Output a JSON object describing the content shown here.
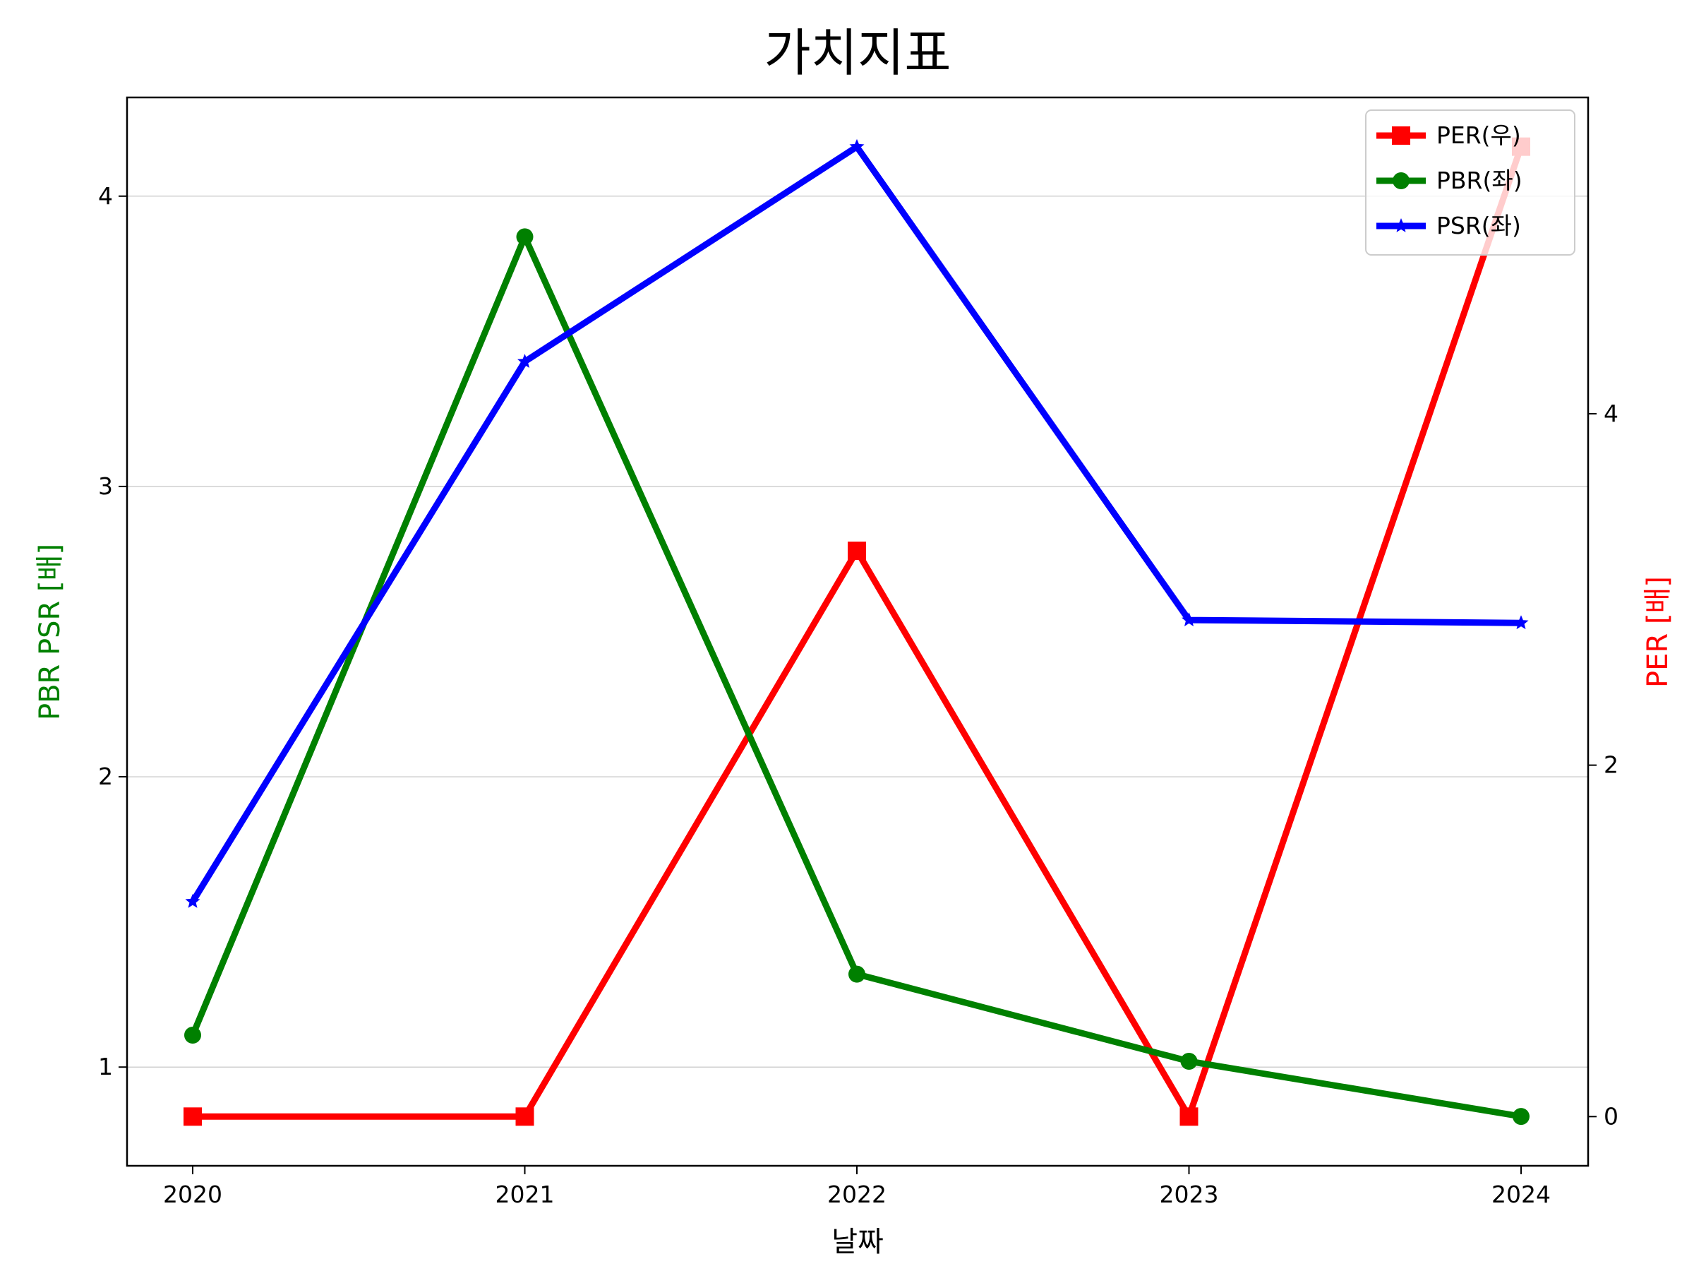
{
  "chart_data": {
    "type": "line",
    "title": "가치지표",
    "xlabel": "날짜",
    "ylabel_left": "PBR PSR [배]",
    "ylabel_right": "PER [배]",
    "x": [
      "2020",
      "2021",
      "2022",
      "2023",
      "2024"
    ],
    "ylim_left": [
      0.66,
      4.34
    ],
    "ylim_right": [
      -0.28,
      5.8
    ],
    "yticks_left": [
      "1",
      "2",
      "3",
      "4"
    ],
    "yticks_right": [
      "0",
      "2",
      "4"
    ],
    "grid": "horizontal",
    "legend_position": "top-right",
    "series": [
      {
        "name": "PER(우)",
        "axis": "right",
        "color": "#ff0000",
        "marker": "square",
        "values": [
          0.0,
          0.0,
          3.22,
          0.0,
          5.52
        ]
      },
      {
        "name": "PBR(좌)",
        "axis": "left",
        "color": "#008000",
        "marker": "circle",
        "values": [
          1.11,
          3.86,
          1.32,
          1.02,
          0.83
        ]
      },
      {
        "name": "PSR(좌)",
        "axis": "left",
        "color": "#0000ff",
        "marker": "star",
        "values": [
          1.57,
          3.43,
          4.17,
          2.54,
          2.53
        ]
      }
    ]
  }
}
